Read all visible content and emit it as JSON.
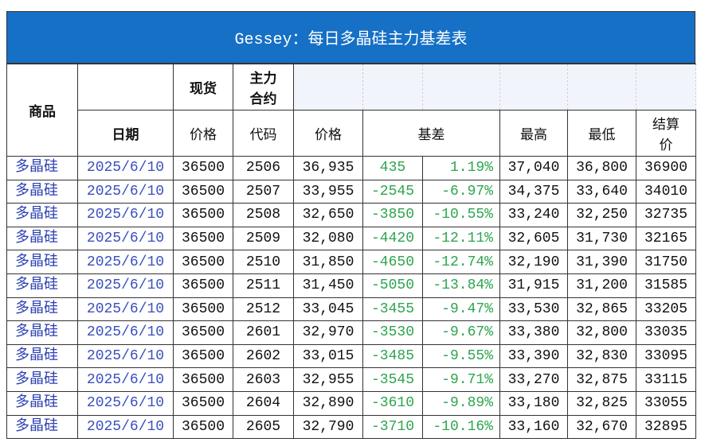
{
  "header": {
    "title": "Gessey：每日多晶硅主力基差表"
  },
  "table": {
    "head_top": {
      "product": "商品",
      "spot": "现货",
      "contract": "主力\n合约"
    },
    "head_sub": {
      "date": "日期",
      "spot_price": "价格",
      "code": "代码",
      "price": "价格",
      "basis": "基差",
      "high": "最高",
      "low": "最低",
      "settle": "结算\n价"
    },
    "rows": [
      [
        "多晶硅",
        "2025/6/10",
        "36500",
        "2506",
        "36,935",
        "435",
        "1.19%",
        "37,040",
        "36,800",
        "36900"
      ],
      [
        "多晶硅",
        "2025/6/10",
        "36500",
        "2507",
        "33,955",
        "-2545",
        "-6.97%",
        "34,375",
        "33,640",
        "34010"
      ],
      [
        "多晶硅",
        "2025/6/10",
        "36500",
        "2508",
        "32,650",
        "-3850",
        "-10.55%",
        "33,240",
        "32,250",
        "32735"
      ],
      [
        "多晶硅",
        "2025/6/10",
        "36500",
        "2509",
        "32,080",
        "-4420",
        "-12.11%",
        "32,605",
        "31,730",
        "32165"
      ],
      [
        "多晶硅",
        "2025/6/10",
        "36500",
        "2510",
        "31,850",
        "-4650",
        "-12.74%",
        "32,190",
        "31,390",
        "31750"
      ],
      [
        "多晶硅",
        "2025/6/10",
        "36500",
        "2511",
        "31,450",
        "-5050",
        "-13.84%",
        "31,915",
        "31,200",
        "31585"
      ],
      [
        "多晶硅",
        "2025/6/10",
        "36500",
        "2512",
        "33,045",
        "-3455",
        "-9.47%",
        "33,530",
        "32,865",
        "33205"
      ],
      [
        "多晶硅",
        "2025/6/10",
        "36500",
        "2601",
        "32,970",
        "-3530",
        "-9.67%",
        "33,380",
        "32,800",
        "33035"
      ],
      [
        "多晶硅",
        "2025/6/10",
        "36500",
        "2602",
        "33,015",
        "-3485",
        "-9.55%",
        "33,390",
        "32,830",
        "33095"
      ],
      [
        "多晶硅",
        "2025/6/10",
        "36500",
        "2603",
        "32,955",
        "-3545",
        "-9.71%",
        "33,270",
        "32,875",
        "33115"
      ],
      [
        "多晶硅",
        "2025/6/10",
        "36500",
        "2604",
        "32,890",
        "-3610",
        "-9.89%",
        "33,180",
        "32,825",
        "33055"
      ],
      [
        "多晶硅",
        "2025/6/10",
        "36500",
        "2605",
        "32,790",
        "-3710",
        "-10.16%",
        "33,160",
        "32,670",
        "32895"
      ]
    ]
  }
}
